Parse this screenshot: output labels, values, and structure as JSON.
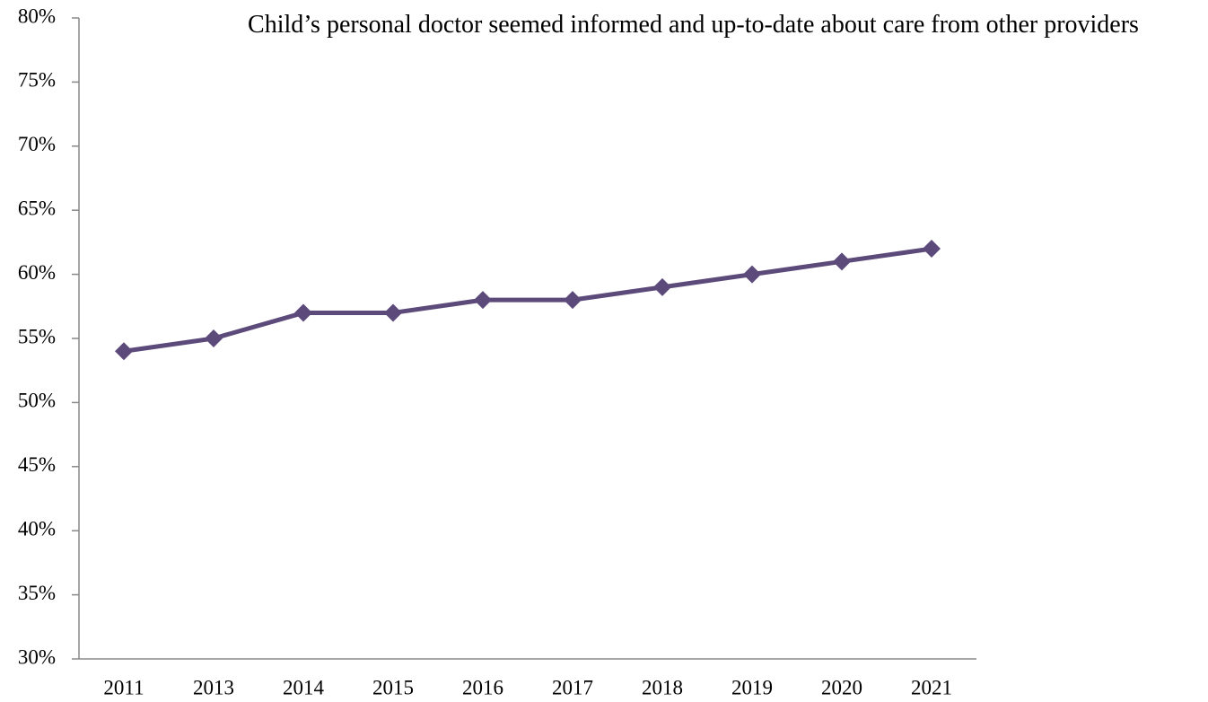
{
  "chart_data": {
    "type": "line",
    "title": "Child’s personal doctor seemed informed and up-to-date about care from other providers",
    "categories": [
      "2011",
      "2013",
      "2014",
      "2015",
      "2016",
      "2017",
      "2018",
      "2019",
      "2020",
      "2021"
    ],
    "series": [
      {
        "color": "#5b4a7a",
        "values": [
          54,
          55,
          57,
          57,
          58,
          58,
          59,
          60,
          61,
          62
        ]
      }
    ],
    "ylim": [
      30,
      80
    ],
    "yticks": [
      {
        "value": 30,
        "label": "30%"
      },
      {
        "value": 35,
        "label": "35%"
      },
      {
        "value": 40,
        "label": "40%"
      },
      {
        "value": 45,
        "label": "45%"
      },
      {
        "value": 50,
        "label": "50%"
      },
      {
        "value": 55,
        "label": "55%"
      },
      {
        "value": 60,
        "label": "60%"
      },
      {
        "value": 65,
        "label": "65%"
      },
      {
        "value": 70,
        "label": "70%"
      },
      {
        "value": 75,
        "label": "75%"
      },
      {
        "value": 80,
        "label": "80%"
      }
    ],
    "grid": false
  }
}
